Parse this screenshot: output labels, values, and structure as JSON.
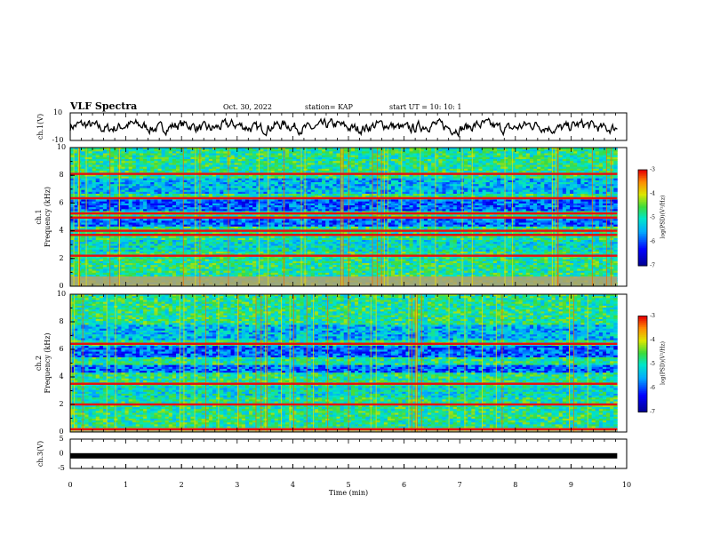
{
  "header": {
    "title": "VLF Spectra",
    "date": "Oct. 30, 2022",
    "station": "station= KAP",
    "start": "start  UT =   10: 10: 1"
  },
  "chart_data": [
    {
      "type": "line",
      "panel": "ch1-waveform",
      "ylabel": "ch.1(V)",
      "ylim": [
        -10,
        10
      ],
      "yticks": [
        "10",
        "-10"
      ],
      "xlim": [
        0,
        10
      ],
      "color": "#000000"
    },
    {
      "type": "heatmap",
      "panel": "ch1-spectrogram",
      "ylabel_line1": "ch.1",
      "ylabel_line2": "Frequency (kHz)",
      "ylim": [
        0,
        10
      ],
      "yticks": [
        "0",
        "2",
        "4",
        "6",
        "8",
        "10"
      ],
      "xlim": [
        0,
        9.83
      ],
      "colorbar": {
        "label": "log(PSD)(V²/Hz)",
        "range": [
          -7,
          -3
        ],
        "ticks": [
          "-3",
          "-4",
          "-5",
          "-6",
          "-7"
        ]
      },
      "red_bands_khz": [
        2.2,
        3.7,
        4.0,
        4.95,
        5.25,
        6.35,
        8.1
      ],
      "low_freq_band_khz": [
        0,
        0.7
      ]
    },
    {
      "type": "heatmap",
      "panel": "ch2-spectrogram",
      "ylabel_line1": "ch.2",
      "ylabel_line2": "Frequency (kHz)",
      "ylim": [
        0,
        10
      ],
      "yticks": [
        "0",
        "2",
        "4",
        "6",
        "8",
        "10"
      ],
      "xlim": [
        0,
        9.83
      ],
      "colorbar": {
        "label": "log(PSD)(V²/Hz)",
        "range": [
          -7,
          -3
        ],
        "ticks": [
          "-3",
          "-4",
          "-5",
          "-6",
          "-7"
        ]
      },
      "red_bands_khz": [
        0.2,
        2.0,
        3.5,
        6.4
      ],
      "low_freq_band_khz": [
        0,
        0.3
      ]
    },
    {
      "type": "line",
      "panel": "ch3-waveform",
      "ylabel": "ch.3(V)",
      "ylim": [
        -5,
        5
      ],
      "yticks": [
        "5",
        "0",
        "-5"
      ],
      "xlim": [
        0,
        10
      ],
      "xlabel": "Time  (min)",
      "xticks": [
        "0",
        "1",
        "2",
        "3",
        "4",
        "5",
        "6",
        "7",
        "8",
        "9",
        "10"
      ],
      "level_v": -0.7,
      "color": "#000000"
    }
  ]
}
